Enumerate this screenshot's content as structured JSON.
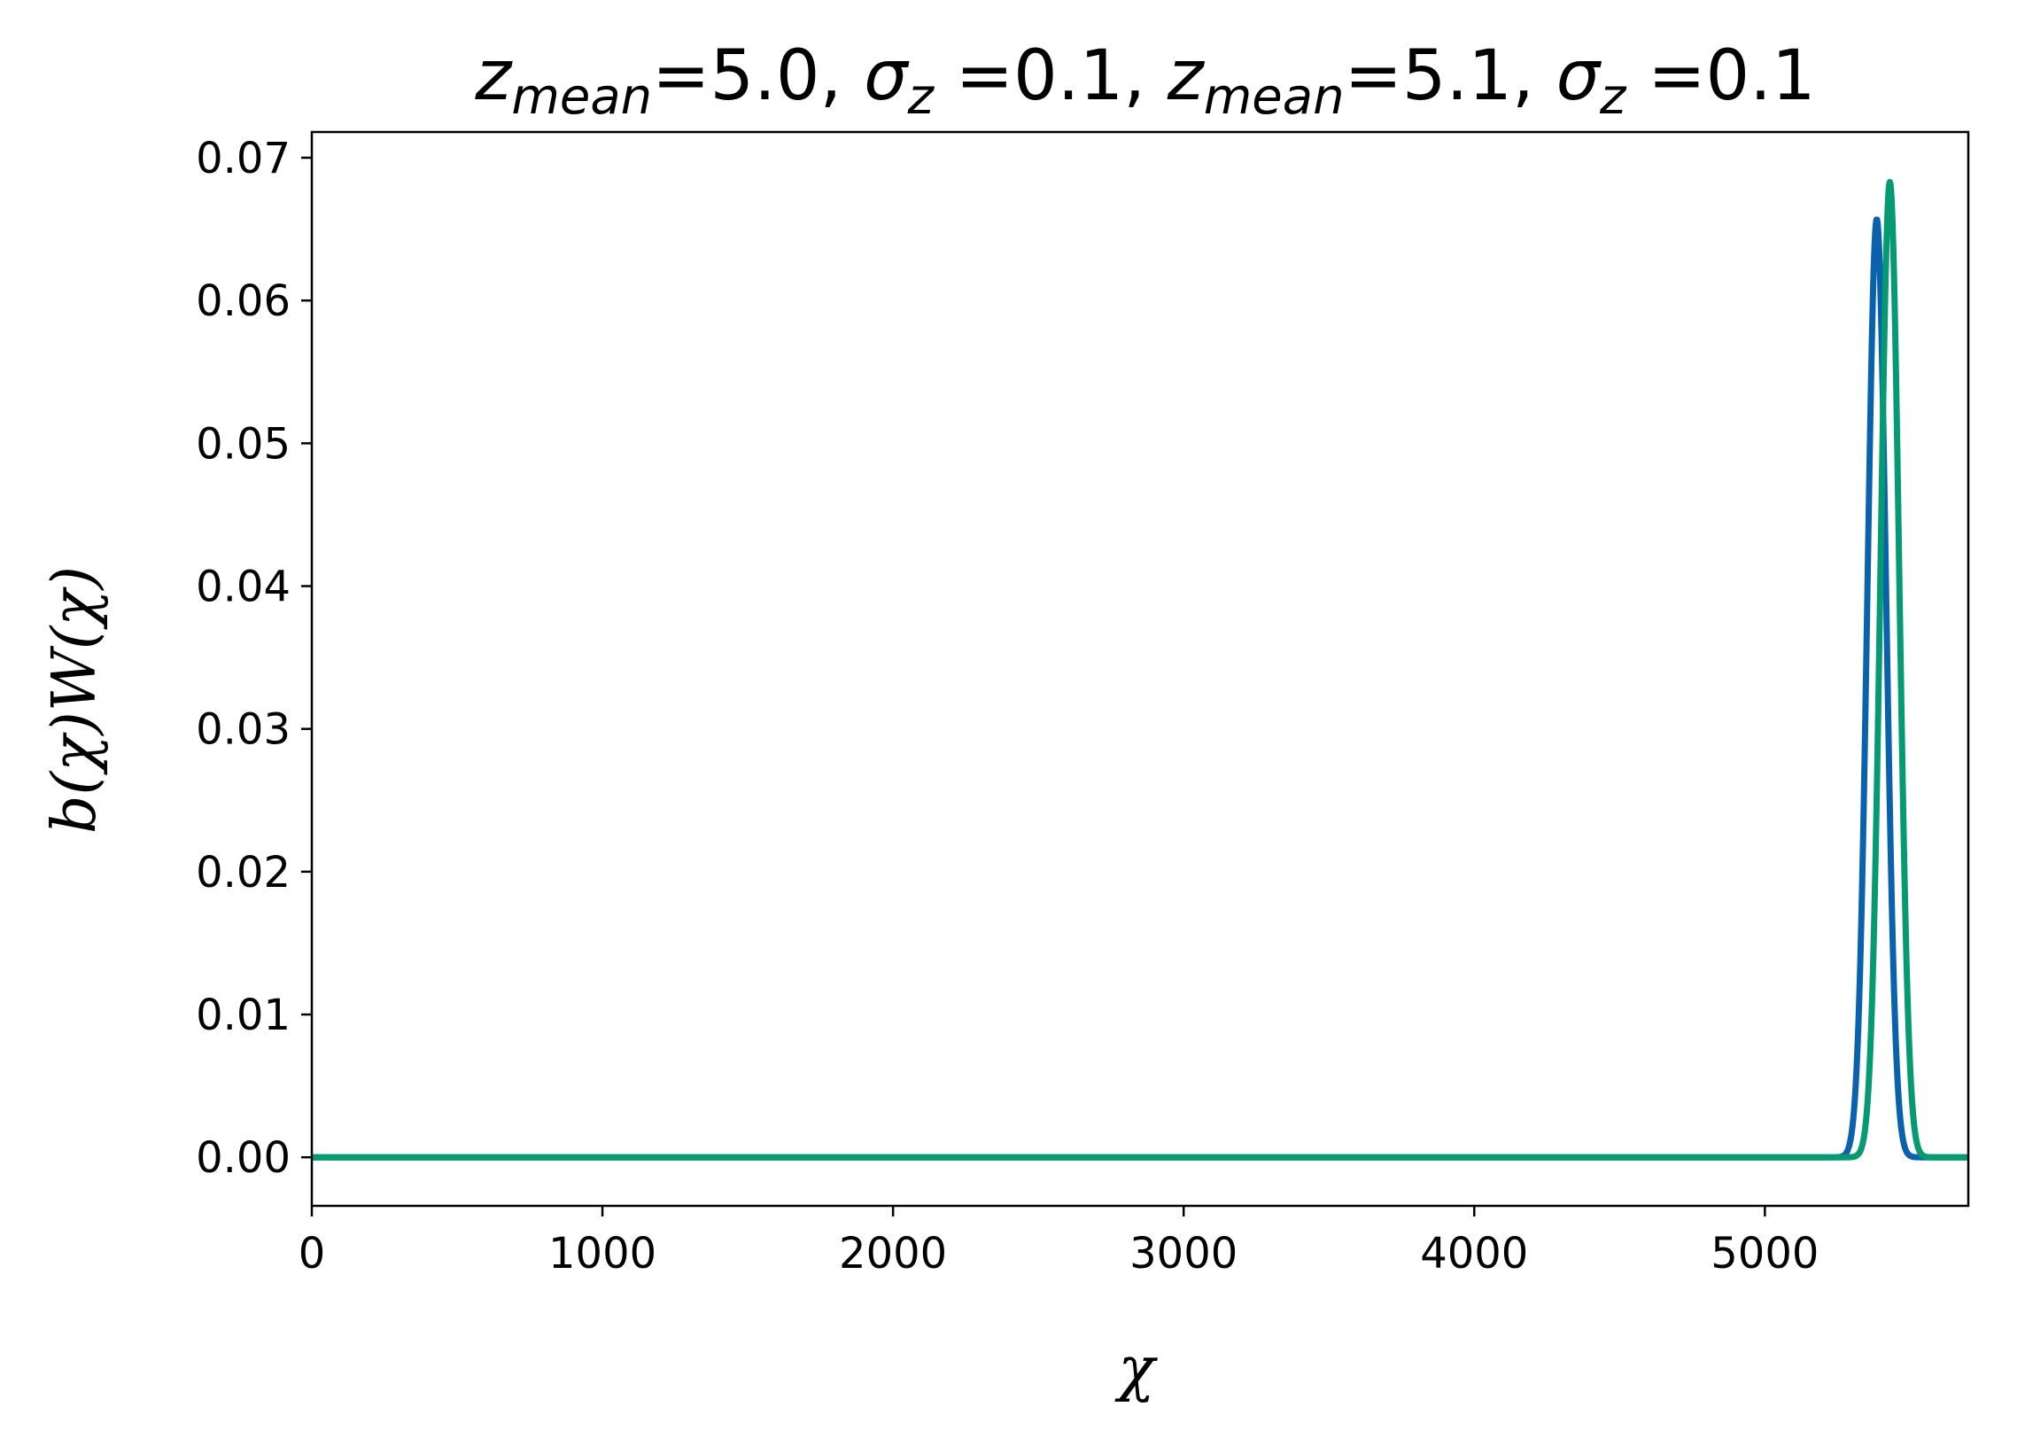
{
  "chart_data": {
    "type": "line",
    "title": {
      "parts": [
        {
          "text": "z",
          "italic": true
        },
        {
          "text": "mean",
          "italic": true,
          "sub": true
        },
        {
          "text": "=5.0, "
        },
        {
          "text": "σ",
          "italic": true
        },
        {
          "text": "z",
          "italic": true,
          "sub": true
        },
        {
          "text": " =0.1, "
        },
        {
          "text": "z",
          "italic": true
        },
        {
          "text": "mean",
          "italic": true,
          "sub": true
        },
        {
          "text": "=5.1, "
        },
        {
          "text": "σ",
          "italic": true
        },
        {
          "text": "z",
          "italic": true,
          "sub": true
        },
        {
          "text": " =0.1"
        }
      ]
    },
    "xlabel": "χ",
    "ylabel": "b(χ)W(χ)",
    "xlim": [
      0,
      5700
    ],
    "ylim": [
      -0.0034,
      0.0718
    ],
    "xticks": [
      0,
      1000,
      2000,
      3000,
      4000,
      5000
    ],
    "xtick_labels": [
      "0",
      "1000",
      "2000",
      "3000",
      "4000",
      "5000"
    ],
    "yticks": [
      0.0,
      0.01,
      0.02,
      0.03,
      0.04,
      0.05,
      0.06,
      0.07
    ],
    "ytick_labels": [
      "0.00",
      "0.01",
      "0.02",
      "0.03",
      "0.04",
      "0.05",
      "0.06",
      "0.07"
    ],
    "grid": false,
    "legend": "none",
    "series": [
      {
        "color": "#0a62ac",
        "peak_x": 5385,
        "peak_y": 0.0657,
        "sigma": 32,
        "x_start": 0,
        "x_end": 5700
      },
      {
        "color": "#069a72",
        "peak_x": 5430,
        "peak_y": 0.0683,
        "sigma": 32,
        "x_start": 0,
        "x_end": 5700
      }
    ]
  }
}
